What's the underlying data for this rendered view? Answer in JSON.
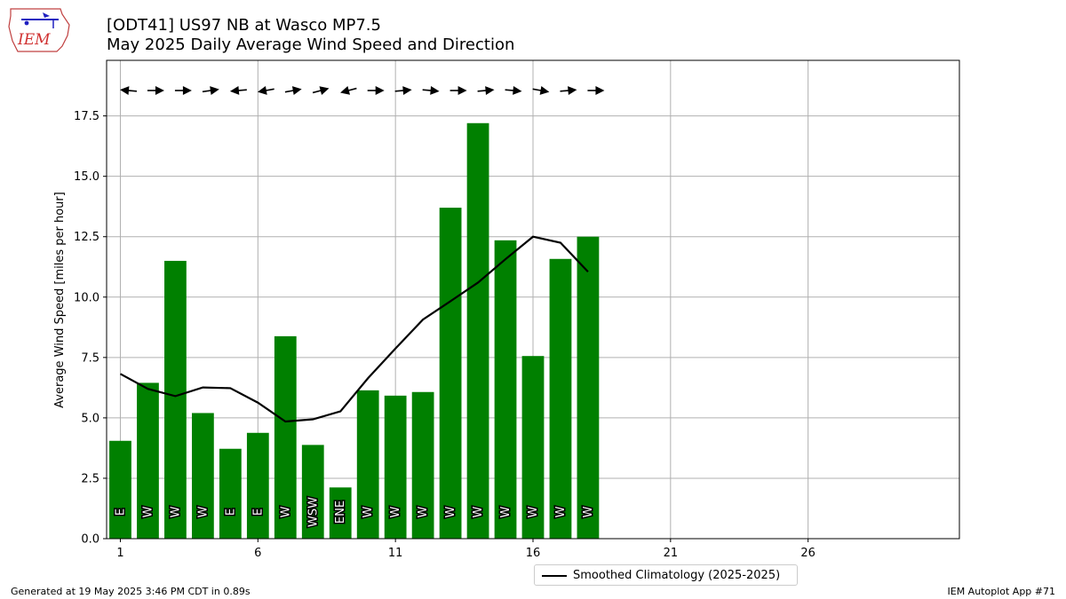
{
  "header": {
    "title_line1": "[ODT41] US97 NB at Wasco MP7.5",
    "title_line2": "May 2025 Daily Average Wind Speed and Direction",
    "logo_text": "IEM"
  },
  "footer": {
    "generated": "Generated at 19 May 2025 3:46 PM CDT in 0.89s",
    "app": "IEM Autoplot App #71"
  },
  "legend": {
    "label": "Smoothed Climatology (2025-2025)"
  },
  "colors": {
    "bar": "#008000",
    "line": "#000000",
    "grid": "#b0b0b0"
  },
  "chart_data": {
    "type": "bar",
    "title": "[ODT41] US97 NB at Wasco MP7.5",
    "subtitle": "May 2025 Daily Average Wind Speed and Direction",
    "xlabel": "",
    "ylabel": "Average Wind Speed [miles per hour]",
    "xlim": [
      0.5,
      31.5
    ],
    "ylim": [
      0,
      19.8
    ],
    "xticks": [
      1,
      6,
      11,
      16,
      21,
      26
    ],
    "yticks": [
      0.0,
      2.5,
      5.0,
      7.5,
      10.0,
      12.5,
      15.0,
      17.5
    ],
    "ytick_labels": [
      "0.0",
      "2.5",
      "5.0",
      "7.5",
      "10.0",
      "12.5",
      "15.0",
      "17.5"
    ],
    "grid": true,
    "legend_position": "bottom-center",
    "days": [
      1,
      2,
      3,
      4,
      5,
      6,
      7,
      8,
      9,
      10,
      11,
      12,
      13,
      14,
      15,
      16,
      17,
      18
    ],
    "values": [
      4.05,
      6.45,
      11.5,
      5.2,
      3.72,
      4.38,
      8.38,
      3.88,
      2.12,
      6.14,
      5.92,
      6.07,
      13.7,
      17.2,
      12.35,
      7.56,
      11.58,
      12.5
    ],
    "directions": [
      "E",
      "W",
      "W",
      "W",
      "E",
      "E",
      "W",
      "WSW",
      "ENE",
      "W",
      "W",
      "W",
      "W",
      "W",
      "W",
      "W",
      "W",
      "W"
    ],
    "direction_degrees": [
      95,
      270,
      270,
      262,
      85,
      80,
      260,
      255,
      75,
      270,
      265,
      275,
      270,
      265,
      275,
      280,
      265,
      270
    ],
    "series": [
      {
        "name": "Smoothed Climatology (2025-2025)",
        "type": "line",
        "x": [
          1,
          2,
          3,
          4,
          5,
          6,
          7,
          8,
          9,
          10,
          11,
          12,
          13,
          14,
          15,
          16,
          17,
          18
        ],
        "values": [
          6.82,
          6.2,
          5.9,
          6.26,
          6.23,
          5.63,
          4.85,
          4.94,
          5.27,
          6.64,
          7.87,
          9.07,
          9.83,
          10.6,
          11.57,
          12.5,
          12.25,
          11.05
        ]
      }
    ]
  }
}
